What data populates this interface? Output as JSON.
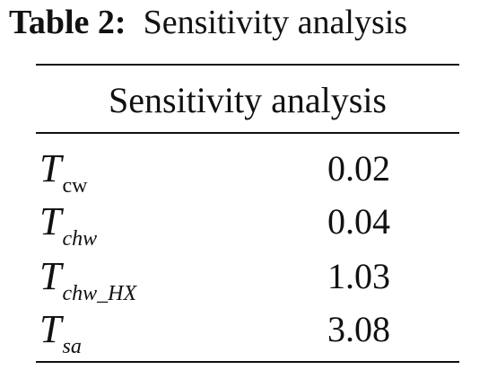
{
  "caption": {
    "label": "Table 2:",
    "text": "Sensitivity analysis"
  },
  "table": {
    "header": "Sensitivity analysis",
    "rows": [
      {
        "symbol": "T",
        "subscript": "cw",
        "value": "0.02"
      },
      {
        "symbol": "T",
        "subscript": "chw",
        "value": "0.04"
      },
      {
        "symbol": "T",
        "subscript": "chw_HX",
        "value": "1.03"
      },
      {
        "symbol": "T",
        "subscript": "sa",
        "value": "3.08"
      }
    ]
  }
}
